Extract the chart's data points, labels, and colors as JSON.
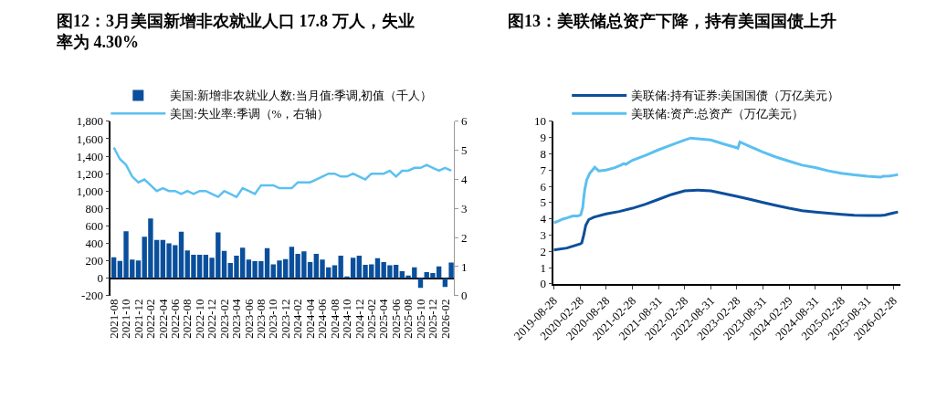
{
  "chart_data": [
    {
      "type": "bar",
      "title": "图12：3月美国新增非农就业人口 17.8 万人，失业率为 4.30%",
      "categories": [
        "2021-08",
        null,
        "2021-10",
        null,
        "2021-12",
        null,
        "2022-02",
        null,
        "2022-04",
        null,
        "2022-06",
        null,
        "2022-08",
        null,
        "2022-10",
        null,
        "2022-12",
        null,
        "2023-02",
        null,
        "2023-04",
        null,
        "2023-06",
        null,
        "2023-08",
        null,
        "2023-10",
        null,
        "2023-12",
        null,
        "2024-02",
        null,
        "2024-04",
        null,
        "2024-06",
        null,
        "2024-08",
        null,
        "2024-10",
        null,
        "2024-12",
        null,
        "2025-02",
        null,
        "2025-04",
        null,
        "2025-06",
        null,
        "2025-08",
        null,
        "2025-10",
        null,
        "2025-12",
        null,
        "2026-02",
        null
      ],
      "series": [
        {
          "name": "美国:新增非农就业人数:当月值:季调,初值（千人）",
          "type": "bar",
          "color": "#0a4f9c",
          "values": [
            240,
            200,
            540,
            215,
            205,
            475,
            685,
            440,
            440,
            400,
            380,
            535,
            320,
            270,
            270,
            270,
            235,
            525,
            315,
            175,
            260,
            350,
            215,
            195,
            195,
            345,
            160,
            205,
            220,
            360,
            280,
            310,
            185,
            280,
            215,
            125,
            150,
            260,
            20,
            235,
            260,
            155,
            160,
            230,
            185,
            150,
            155,
            80,
            30,
            125,
            -110,
            70,
            60,
            135,
            -100,
            180
          ]
        },
        {
          "name": "美国:失业率:季调（%，右轴）",
          "type": "line",
          "axis": "y2",
          "color": "#5bc0f0",
          "values": [
            5.1,
            4.7,
            4.5,
            4.1,
            3.9,
            4.0,
            3.8,
            3.6,
            3.7,
            3.6,
            3.6,
            3.5,
            3.6,
            3.5,
            3.6,
            3.6,
            3.5,
            3.4,
            3.6,
            3.5,
            3.4,
            3.7,
            3.6,
            3.5,
            3.8,
            3.8,
            3.8,
            3.7,
            3.7,
            3.7,
            3.9,
            3.9,
            3.9,
            4.0,
            4.1,
            4.2,
            4.2,
            4.1,
            4.1,
            4.2,
            4.1,
            4.0,
            4.2,
            4.2,
            4.2,
            4.3,
            4.1,
            4.3,
            4.3,
            4.4,
            4.4,
            4.5,
            4.4,
            4.3,
            4.4,
            4.3
          ]
        }
      ],
      "ylim": [
        -200,
        1800
      ],
      "yticks": [
        -200,
        0,
        200,
        400,
        600,
        800,
        {
          "value": 1000,
          "label": "1,000"
        },
        {
          "value": 1200,
          "label": "1,200"
        },
        {
          "value": 1400,
          "label": "1,400"
        },
        {
          "value": 1600,
          "label": "1,600"
        },
        {
          "value": 1800,
          "label": "1,800"
        }
      ],
      "y2lim": [
        0,
        6
      ],
      "y2ticks": [
        0,
        1,
        2,
        3,
        4,
        5,
        6
      ],
      "legend": "top"
    },
    {
      "type": "line",
      "title": "图13：美联储总资产下降，持有美国国债上升",
      "series": [
        {
          "name": "美联储:持有证券:美国国债（万亿美元）",
          "color": "#0b4f9c",
          "x": [
            "2019-08-28",
            "2019-11-28",
            "2020-02-28",
            "2020-03-11",
            "2020-03-25",
            "2020-04-08",
            "2020-04-29",
            "2020-06-03",
            "2020-08-28",
            "2020-11-28",
            "2021-02-28",
            "2021-05-31",
            "2021-08-31",
            "2021-11-30",
            "2022-02-28",
            "2022-05-31",
            "2022-08-31",
            "2022-11-30",
            "2023-02-28",
            "2023-05-31",
            "2023-08-31",
            "2023-11-30",
            "2024-02-29",
            "2024-05-31",
            "2024-08-31",
            "2024-11-30",
            "2025-02-28",
            "2025-05-31",
            "2025-08-31",
            "2025-11-30",
            "2025-12-31",
            "2026-01-31",
            "2026-02-28",
            "2026-04-01"
          ],
          "values": [
            2.08,
            2.2,
            2.45,
            2.52,
            3.0,
            3.6,
            3.95,
            4.1,
            4.3,
            4.45,
            4.65,
            4.9,
            5.2,
            5.5,
            5.72,
            5.77,
            5.72,
            5.55,
            5.38,
            5.2,
            5.0,
            4.82,
            4.65,
            4.5,
            4.42,
            4.35,
            4.28,
            4.22,
            4.2,
            4.2,
            4.23,
            4.3,
            4.36,
            4.42
          ]
        },
        {
          "name": "美联储:资产:总资产（万亿美元）",
          "color": "#5bc0f0",
          "x": [
            "2019-08-28",
            "2019-09-25",
            "2019-10-30",
            "2019-12-04",
            "2020-01-08",
            "2020-02-12",
            "2020-03-04",
            "2020-03-18",
            "2020-03-25",
            "2020-04-01",
            "2020-04-15",
            "2020-05-06",
            "2020-06-10",
            "2020-07-08",
            "2020-08-28",
            "2020-10-28",
            "2020-12-09",
            "2020-12-30",
            "2021-01-13",
            "2021-02-28",
            "2021-05-31",
            "2021-08-31",
            "2021-11-30",
            "2022-02-28",
            "2022-04-13",
            "2022-06-01",
            "2022-08-31",
            "2022-11-30",
            "2023-02-28",
            "2023-03-08",
            "2023-03-22",
            "2023-05-31",
            "2023-08-31",
            "2023-11-30",
            "2024-02-29",
            "2024-05-31",
            "2024-08-31",
            "2024-11-30",
            "2025-02-28",
            "2025-05-31",
            "2025-08-31",
            "2025-11-30",
            "2025-12-17",
            "2026-01-31",
            "2026-02-28",
            "2026-04-01"
          ],
          "values": [
            3.75,
            3.85,
            3.98,
            4.07,
            4.17,
            4.18,
            4.24,
            4.7,
            5.3,
            5.8,
            6.4,
            6.8,
            7.17,
            6.95,
            7.0,
            7.15,
            7.3,
            7.4,
            7.35,
            7.6,
            7.9,
            8.25,
            8.55,
            8.85,
            8.97,
            8.93,
            8.85,
            8.6,
            8.38,
            8.34,
            8.73,
            8.45,
            8.1,
            7.8,
            7.55,
            7.3,
            7.15,
            6.95,
            6.8,
            6.7,
            6.62,
            6.56,
            6.62,
            6.63,
            6.67,
            6.72
          ]
        }
      ],
      "xlim": [
        "2019-08-28",
        "2026-04-15"
      ],
      "xticks": [
        "2019-08-28",
        "2020-02-28",
        "2020-08-28",
        "2021-02-28",
        "2021-08-31",
        "2022-02-28",
        "2022-08-31",
        "2023-02-28",
        "2023-08-31",
        "2024-02-29",
        "2024-08-31",
        "2025-02-28",
        "2025-08-31",
        "2026-02-28"
      ],
      "ylim": [
        0,
        10
      ],
      "yticks": [
        0,
        1,
        2,
        3,
        4,
        5,
        6,
        7,
        8,
        9,
        10
      ],
      "legend": "top"
    }
  ]
}
